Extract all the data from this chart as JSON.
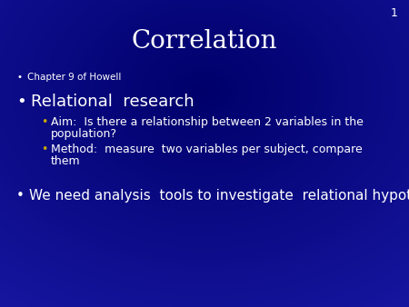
{
  "title": "Correlation",
  "slide_number": "1",
  "bg_color": "#00006A",
  "bg_gradient": true,
  "title_color": "#FFFFFF",
  "title_fontsize": 20,
  "slide_number_color": "#FFFFFF",
  "slide_number_fontsize": 9,
  "text_color": "#FFFFFF",
  "sub_bullet_color": "#C8A800",
  "white_bullet_color": "#FFFFFF",
  "bullet1_text": "Chapter 9 of Howell",
  "bullet1_fontsize": 7.5,
  "bullet2_text": "Relational  research",
  "bullet2_fontsize": 13,
  "sub_bullet1_line1": "Aim:  Is there a relationship between 2 variables in the",
  "sub_bullet1_line2": "population?",
  "sub_bullet1_fontsize": 9,
  "sub_bullet2_line1": "Method:  measure  two variables per subject, compare",
  "sub_bullet2_line2": "them",
  "sub_bullet2_fontsize": 9,
  "bullet3_text": "We need analysis  tools to investigate  relational hypotheses",
  "bullet3_fontsize": 11
}
